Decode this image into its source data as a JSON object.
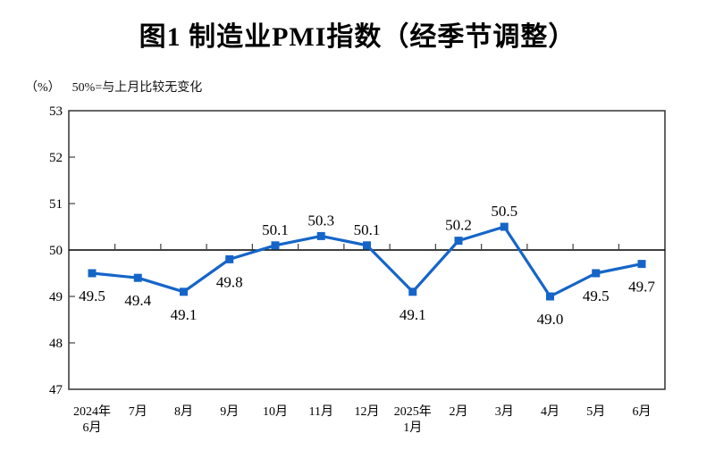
{
  "header": {
    "title": "图1 制造业PMI指数（经季节调整）",
    "unit_label": "（%）",
    "note": "50%=与上月比较无变化"
  },
  "colors": {
    "line": "#1565C8",
    "axis": "#3f3f3f",
    "reference_line": "#000000",
    "text": "#000000"
  },
  "chart_data": {
    "type": "line",
    "title": "图1 制造业PMI指数（经季节调整）",
    "unit": "%",
    "note": "50%=与上月比较无变化",
    "categories": [
      "2024年6月",
      "7月",
      "8月",
      "9月",
      "10月",
      "11月",
      "12月",
      "2025年1月",
      "2月",
      "3月",
      "4月",
      "5月",
      "6月"
    ],
    "x_tick_lines": [
      [
        "2024年",
        "6月"
      ],
      [
        "7月"
      ],
      [
        "8月"
      ],
      [
        "9月"
      ],
      [
        "10月"
      ],
      [
        "11月"
      ],
      [
        "12月"
      ],
      [
        "2025年",
        "1月"
      ],
      [
        "2月"
      ],
      [
        "3月"
      ],
      [
        "4月"
      ],
      [
        "5月"
      ],
      [
        "6月"
      ]
    ],
    "series": [
      {
        "name": "制造业PMI指数（经季节调整）",
        "values": [
          49.5,
          49.4,
          49.1,
          49.8,
          50.1,
          50.3,
          50.1,
          49.1,
          50.2,
          50.5,
          49.0,
          49.5,
          49.7
        ],
        "labels": [
          "49.5",
          "49.4",
          "49.1",
          "49.8",
          "50.1",
          "50.3",
          "50.1",
          "49.1",
          "50.2",
          "50.5",
          "49.0",
          "49.5",
          "49.7"
        ]
      }
    ],
    "ylim": [
      47,
      53
    ],
    "yticks": [
      47,
      48,
      49,
      50,
      51,
      52,
      53
    ],
    "reference_line": 50,
    "grid": false,
    "legend_position": "none",
    "marker": "square",
    "line_color": "#1565C8"
  }
}
